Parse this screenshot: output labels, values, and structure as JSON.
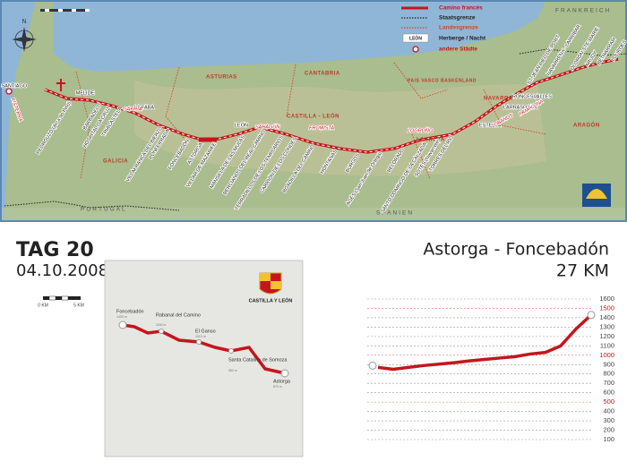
{
  "map": {
    "compass": "N",
    "legend": [
      "Camino francés",
      "Staatsgrenze",
      "Landesgrenze",
      "LEÓN",
      "Herberge / Nacht",
      "andere Städte"
    ],
    "countries": [
      "FRANKREICH",
      "PORTUGAL",
      "SPANIEN"
    ],
    "regions": [
      "ASTURIAS",
      "CANTABRIA",
      "PAIS VASCO BASKENLAND",
      "NAVARRA",
      "LA RIOJA",
      "ARAGÓN",
      "CASTILLA - LEÓN",
      "GALICIA"
    ],
    "towns": [
      "SANTIAGO",
      "MÉLIDE",
      "PEDROUZO (Arca do Pino)",
      "BARBADELO",
      "HOSPITAL DA CRUZ",
      "TRIACASTELA",
      "LA FABA",
      "VILLAFRANCA DEL BIERZO",
      "PONFERRADA",
      "FONCEBADÓN",
      "ASTORGA",
      "VILLAR DE MAZARIFE",
      "LEÓN",
      "MANSILLA DE LAS MULAS",
      "BERCIANOS DEL REAL CAMINO",
      "TERRADILLOS DE LOS TEMPLARIOS",
      "CARRIÓN DE LOS CONDES",
      "BOADILLA DEL CAMINO",
      "HONTANAS",
      "BURGOS",
      "AGÉS (San Juan de Ortega)",
      "BELORADO",
      "SANTO DOMINGO DE LA CALZADA",
      "SOTÉS (Navarrete)",
      "TORRES DEL RIO",
      "ESTELLA",
      "LARRASOAÑA",
      "RONCESVALLES",
      "ST. JEAN PIED DE PORT",
      "NAVARRENX - LARRIBAR",
      "OLORON-STE-MARIE",
      "ARUDY",
      "BETHARRAM",
      "LOURDES"
    ],
    "other_towns": [
      "FISTERRA",
      "SARRIA",
      "SAHAGÚN",
      "FROMISTA",
      "LOGROÑO",
      "OBANOS",
      "PAMPLONA"
    ]
  },
  "day": {
    "title": "TAG 20",
    "date": "04.10.2008",
    "scale_labels": [
      "0 KM",
      "5 KM"
    ]
  },
  "stage": {
    "title": "Astorga - Foncebadón",
    "distance": "27 KM"
  },
  "inset": {
    "region": "CASTILLA Y LEÓN",
    "places": [
      {
        "name": "Foncebadón",
        "elevation": "1430 m"
      },
      {
        "name": "Rabanal del Camino",
        "elevation": "1160 m"
      },
      {
        "name": "El Ganso",
        "elevation": "1013 m"
      },
      {
        "name": "Santa Catalina de Somoza",
        "elevation": "983 m"
      },
      {
        "name": "Astorga",
        "elevation": "870 m"
      }
    ]
  },
  "chart_data": {
    "type": "line",
    "color": "#c4161c",
    "categories": [
      null,
      null,
      null,
      null,
      null,
      null,
      null,
      null,
      null,
      null,
      null,
      null,
      null,
      null,
      null
    ],
    "values": [
      870,
      850,
      870,
      890,
      905,
      920,
      940,
      955,
      970,
      985,
      1013,
      1030,
      1100,
      1280,
      1430
    ],
    "ylim": [
      100,
      1600
    ],
    "yticks": [
      100,
      200,
      300,
      400,
      500,
      600,
      700,
      800,
      900,
      1000,
      1100,
      1200,
      1300,
      1400,
      1500,
      1600
    ],
    "accent_ticks": [
      500,
      1000,
      1500
    ],
    "accent_color": "#c4161c",
    "grid": true
  }
}
